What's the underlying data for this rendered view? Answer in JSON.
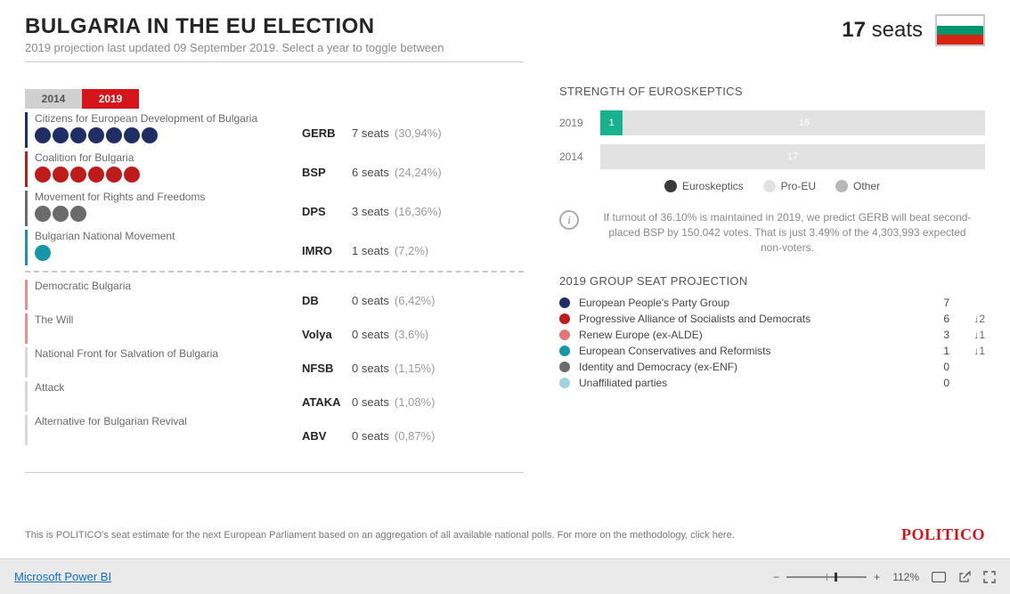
{
  "header": {
    "title": "BULGARIA IN THE EU ELECTION",
    "subtitle": "2019 projection last updated 09 September 2019. Select a year to toggle between",
    "seat_count": "17",
    "seat_label": "seats",
    "flag_colors": [
      "#ffffff",
      "#00966e",
      "#d62612"
    ]
  },
  "tabs": {
    "a": "2014",
    "b": "2019"
  },
  "parties_top": [
    {
      "name": "Citizens for European Development of Bulgaria",
      "code": "GERB",
      "seats": "7 seats",
      "pct": "(30,94%)",
      "color": "#1f2f66",
      "dots": 7
    },
    {
      "name": "Coalition for Bulgaria",
      "code": "BSP",
      "seats": "6 seats",
      "pct": "(24,24%)",
      "color": "#c01b1b",
      "dots": 6
    },
    {
      "name": "Movement for Rights and Freedoms",
      "code": "DPS",
      "seats": "3 seats",
      "pct": "(16,36%)",
      "color": "#6b6b6b",
      "dots": 3
    },
    {
      "name": "Bulgarian National Movement",
      "code": "IMRO",
      "seats": "1 seats",
      "pct": "(7,2%)",
      "color": "#1696a7",
      "dots": 1
    }
  ],
  "parties_bottom": [
    {
      "name": "Democratic Bulgaria",
      "code": "DB",
      "seats": "0 seats",
      "pct": "(6,42%)",
      "color": "#e58f8f"
    },
    {
      "name": "The Will",
      "code": "Volya",
      "seats": "0 seats",
      "pct": "(3,6%)",
      "color": "#e58f8f"
    },
    {
      "name": "National Front for Salvation of Bulgaria",
      "code": "NFSB",
      "seats": "0 seats",
      "pct": "(1,15%)",
      "color": "#d8d8d8"
    },
    {
      "name": "Attack",
      "code": "ATAKA",
      "seats": "0 seats",
      "pct": "(1,08%)",
      "color": "#d8d8d8"
    },
    {
      "name": "Alternative for Bulgarian Revival",
      "code": "ABV",
      "seats": "0 seats",
      "pct": "(0,87%)",
      "color": "#d8d8d8"
    }
  ],
  "skeptics": {
    "title": "STRENGTH OF EUROSKEPTICS",
    "total": 17,
    "rows": [
      {
        "year": "2019",
        "segs": [
          {
            "v": 1,
            "c": "#18b28f"
          },
          {
            "v": 16,
            "c": "#e2e2e2"
          }
        ]
      },
      {
        "year": "2014",
        "segs": [
          {
            "v": 17,
            "c": "#e2e2e2"
          }
        ]
      }
    ],
    "legend": [
      {
        "label": "Euroskeptics",
        "color": "#3a3a3a"
      },
      {
        "label": "Pro-EU",
        "color": "#e2e2e2"
      },
      {
        "label": "Other",
        "color": "#b8b8b8"
      }
    ]
  },
  "info_text": "If turnout of 36.10% is maintained in 2019, we predict GERB will beat second-placed BSP by 150,042 votes. That is just 3.49% of the 4,303,993 expected non-voters.",
  "projection": {
    "title": "2019 GROUP SEAT PROJECTION",
    "rows": [
      {
        "name": "European People's Party Group",
        "n": "7",
        "extra": "",
        "color": "#1f2f66"
      },
      {
        "name": "Progressive Alliance of Socialists and Democrats",
        "n": "6",
        "extra": "↓2",
        "color": "#c01b1b"
      },
      {
        "name": "Renew Europe (ex-ALDE)",
        "n": "3",
        "extra": "↓1",
        "color": "#e5737a"
      },
      {
        "name": "European Conservatives and Reformists",
        "n": "1",
        "extra": "↓1",
        "color": "#1696a7"
      },
      {
        "name": "Identity and Democracy (ex-ENF)",
        "n": "0",
        "extra": "",
        "color": "#6b6b6b"
      },
      {
        "name": "Unaffiliated parties",
        "n": "0",
        "extra": "",
        "color": "#9fd4e0"
      }
    ]
  },
  "footer": {
    "note": "This is POLITICO's seat estimate for the next European Parliament based on an aggregation of all available national polls. For more on the methodology, click here.",
    "brand": "POLITICO"
  },
  "statusbar": {
    "brand": "Microsoft Power BI",
    "zoom": "112%",
    "thumb_pct": 60
  }
}
